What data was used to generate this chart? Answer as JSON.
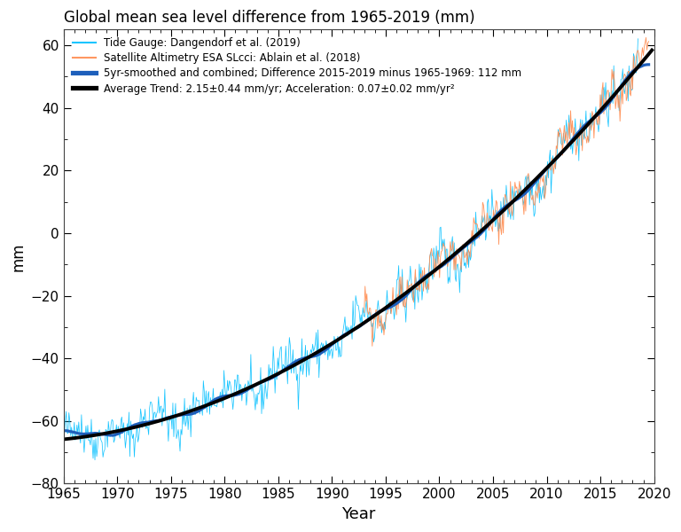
{
  "title": "Global mean sea level difference from 1965-2019 (mm)",
  "xlabel": "Year",
  "ylabel": "mm",
  "xlim": [
    1965,
    2020
  ],
  "ylim": [
    -80,
    65
  ],
  "yticks": [
    -80,
    -60,
    -40,
    -20,
    0,
    20,
    40,
    60
  ],
  "xticks": [
    1965,
    1970,
    1975,
    1980,
    1985,
    1990,
    1995,
    2000,
    2005,
    2010,
    2015,
    2020
  ],
  "legend_entries": [
    "Tide Gauge: Dangendorf et al. (2019)",
    "Satellite Altimetry ESA SLcci: Ablain et al. (2018)",
    "5yr-smoothed and combined; Difference 2015-2019 minus 1965-1969: 112 mm",
    "Average Trend: 2.15±0.44 mm/yr; Acceleration: 0.07±0.02 mm/yr²"
  ],
  "legend_colors": [
    "#00BFFF",
    "#FF8C50",
    "#1E5FBB",
    "#000000"
  ],
  "legend_lw": [
    1.0,
    1.0,
    2.5,
    2.5
  ],
  "tide_color": "#00BFFF",
  "satellite_color": "#FF8C50",
  "smoothed_color": "#1E5FBB",
  "trend_color": "#000000",
  "background_color": "#ffffff",
  "accel_b": 0.07,
  "noise_seed_tide": 42,
  "noise_seed_sat": 99
}
